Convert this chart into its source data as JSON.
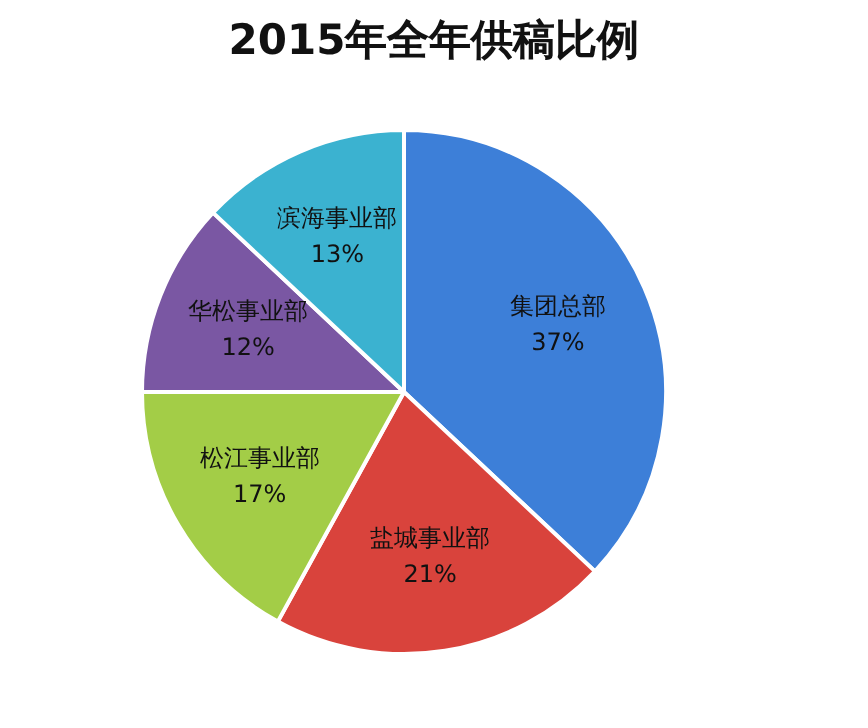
{
  "chart_data": {
    "type": "pie",
    "title": "2015年全年供稿比例",
    "categories": [
      "集团总部",
      "盐城事业部",
      "松江事业部",
      "华松事业部",
      "滨海事业部"
    ],
    "values": [
      37,
      21,
      17,
      12,
      13
    ],
    "value_labels": [
      "37%",
      "21%",
      "17%",
      "12%",
      "13%"
    ],
    "colors": [
      "#3d7fd8",
      "#d9433c",
      "#a3cd47",
      "#7a57a3",
      "#3bb2d0"
    ],
    "legend": false
  }
}
